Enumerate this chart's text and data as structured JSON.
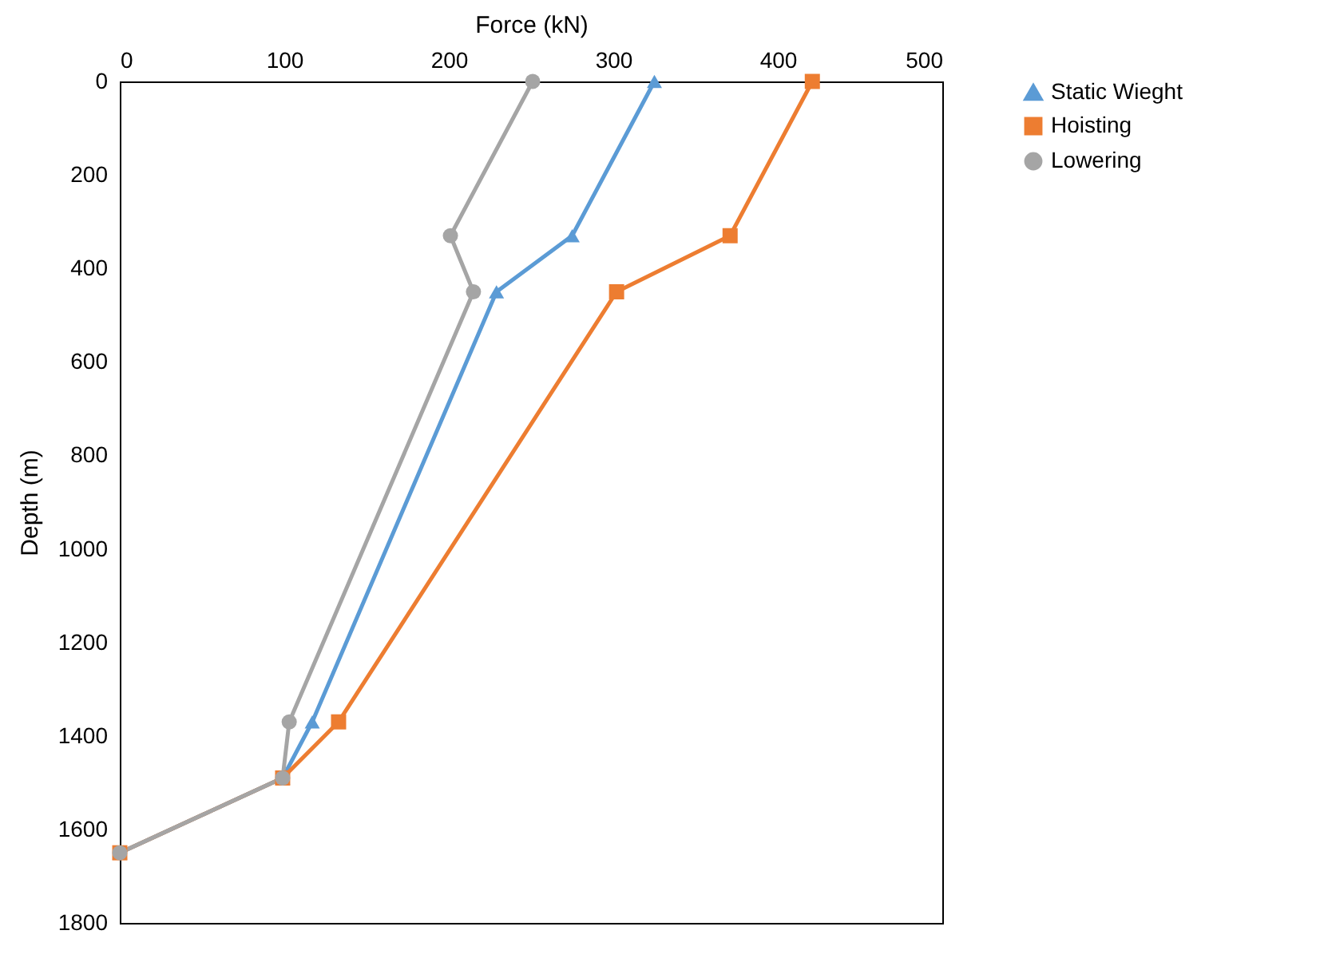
{
  "chart_data": {
    "type": "line",
    "xlabel": "Force (kN)",
    "ylabel": "Depth (m)",
    "xlim": [
      0,
      500
    ],
    "xticks": [
      0,
      100,
      200,
      300,
      400,
      500
    ],
    "ylim": [
      1800,
      0
    ],
    "yticks": [
      0,
      200,
      400,
      600,
      800,
      1000,
      1200,
      1400,
      1600,
      1800
    ],
    "grid": false,
    "legend": "right",
    "series": [
      {
        "name": "Static Wieght",
        "color": "#5b9bd5",
        "marker": "triangle",
        "x": [
          325,
          275,
          229,
          117,
          99,
          0
        ],
        "values": [
          0,
          330,
          450,
          1370,
          1490,
          1650
        ]
      },
      {
        "name": "Hoisting",
        "color": "#ed7d31",
        "marker": "square",
        "x": [
          421,
          371,
          302,
          133,
          99,
          0
        ],
        "values": [
          0,
          330,
          450,
          1370,
          1490,
          1650
        ]
      },
      {
        "name": "Lowering",
        "color": "#a5a5a5",
        "marker": "circle",
        "x": [
          251,
          201,
          215,
          103,
          99,
          0
        ],
        "values": [
          0,
          330,
          450,
          1370,
          1490,
          1650
        ]
      }
    ]
  }
}
